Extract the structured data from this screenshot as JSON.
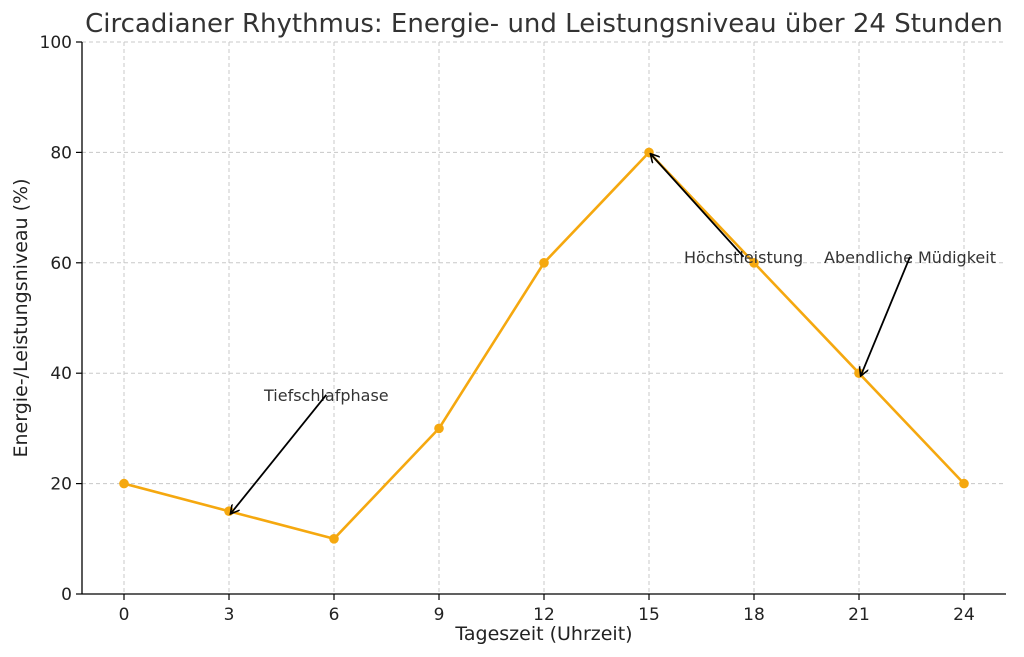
{
  "chart_data": {
    "type": "line",
    "title": "Circadianer Rhythmus: Energie- und Leistungsniveau über 24 Stunden",
    "xlabel": "Tageszeit (Uhrzeit)",
    "ylabel": "Energie-/Leistungsniveau (%)",
    "x": [
      0,
      3,
      6,
      9,
      12,
      15,
      18,
      21,
      24
    ],
    "series": [
      {
        "values": [
          20,
          15,
          10,
          30,
          60,
          80,
          60,
          40,
          20
        ],
        "color": "#f5a80f"
      }
    ],
    "xlim": [
      -1.2,
      25.2
    ],
    "ylim": [
      0,
      100
    ],
    "xticks": [
      "0",
      "3",
      "6",
      "9",
      "12",
      "15",
      "18",
      "21",
      "24"
    ],
    "yticks": [
      "0",
      "20",
      "40",
      "60",
      "80",
      "100"
    ],
    "grid": true,
    "annotations": [
      {
        "text": "Tiefschlafphase",
        "x": 3,
        "y": 15,
        "text_x": 4,
        "text_y": 35
      },
      {
        "text": "Höchstleistung",
        "x": 15,
        "y": 80,
        "text_x": 16,
        "text_y": 60
      },
      {
        "text": "Abendliche Müdigkeit",
        "x": 21,
        "y": 40,
        "text_x": 20,
        "text_y": 60
      }
    ]
  }
}
